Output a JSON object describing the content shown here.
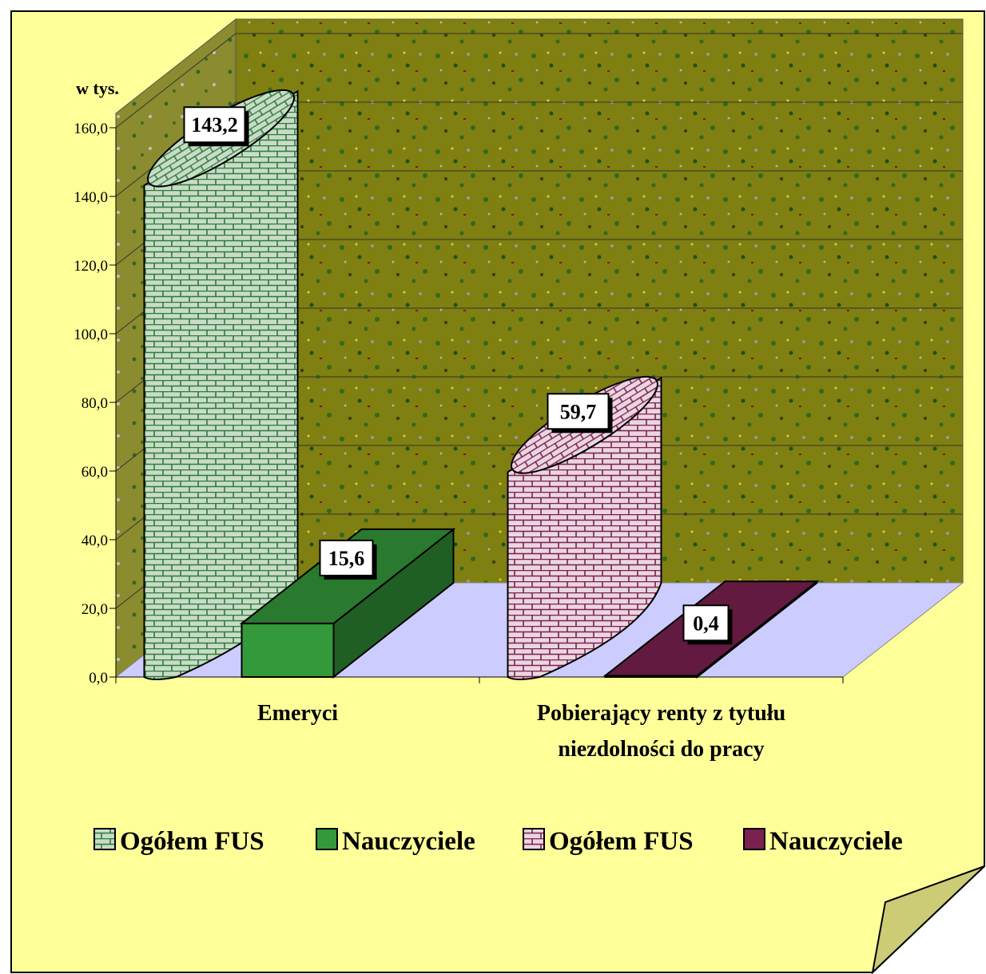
{
  "colors": {
    "page": "#ffff99",
    "wall": "#7f7f12",
    "floor": "#ccccff",
    "side_wall": "#8b8b30",
    "fus_emeryci": "#c8dcc8",
    "nauczyciele_emeryci": "#33993a",
    "fus_renty": "#ead6e0",
    "nauczyciele_renty": "#7a2150",
    "grid": "#000000"
  },
  "chart_data": {
    "type": "bar",
    "ylabel": "w tys.",
    "ylim": [
      0,
      160
    ],
    "yticks": [
      "0,0",
      "20,0",
      "40,0",
      "60,0",
      "80,0",
      "100,0",
      "120,0",
      "140,0",
      "160,0"
    ],
    "categories": [
      "Emeryci",
      "Pobierający renty z tytułu niezdolności do pracy"
    ],
    "category_lines": [
      [
        "Emeryci"
      ],
      [
        "Pobierający renty z tytułu",
        "niezdolności do pracy"
      ]
    ],
    "series": [
      {
        "name": "Ogółem FUS",
        "category": "Emeryci",
        "value": 143.2,
        "label": "143,2",
        "shape": "cylinder",
        "color": "#c8dcc8",
        "pattern": "brick"
      },
      {
        "name": "Nauczyciele",
        "category": "Emeryci",
        "value": 15.6,
        "label": "15,6",
        "shape": "box",
        "color": "#33993a"
      },
      {
        "name": "Ogółem FUS",
        "category": "Pobierający renty z tytułu niezdolności do pracy",
        "value": 59.7,
        "label": "59,7",
        "shape": "cylinder",
        "color": "#ead6e0",
        "pattern": "brick"
      },
      {
        "name": "Nauczyciele",
        "category": "Pobierający renty z tytułu niezdolności do pracy",
        "value": 0.4,
        "label": "0,4",
        "shape": "box",
        "color": "#7a2150"
      }
    ],
    "legend": {
      "position": "bottom",
      "items": [
        {
          "label": "Ogółem FUS",
          "color": "#c8dcc8",
          "pattern": "brick"
        },
        {
          "label": "Nauczyciele",
          "color": "#33993a"
        },
        {
          "label": "Ogółem FUS",
          "color": "#ead6e0",
          "pattern": "brick"
        },
        {
          "label": "Nauczyciele",
          "color": "#7a2150"
        }
      ]
    },
    "grid": true
  }
}
